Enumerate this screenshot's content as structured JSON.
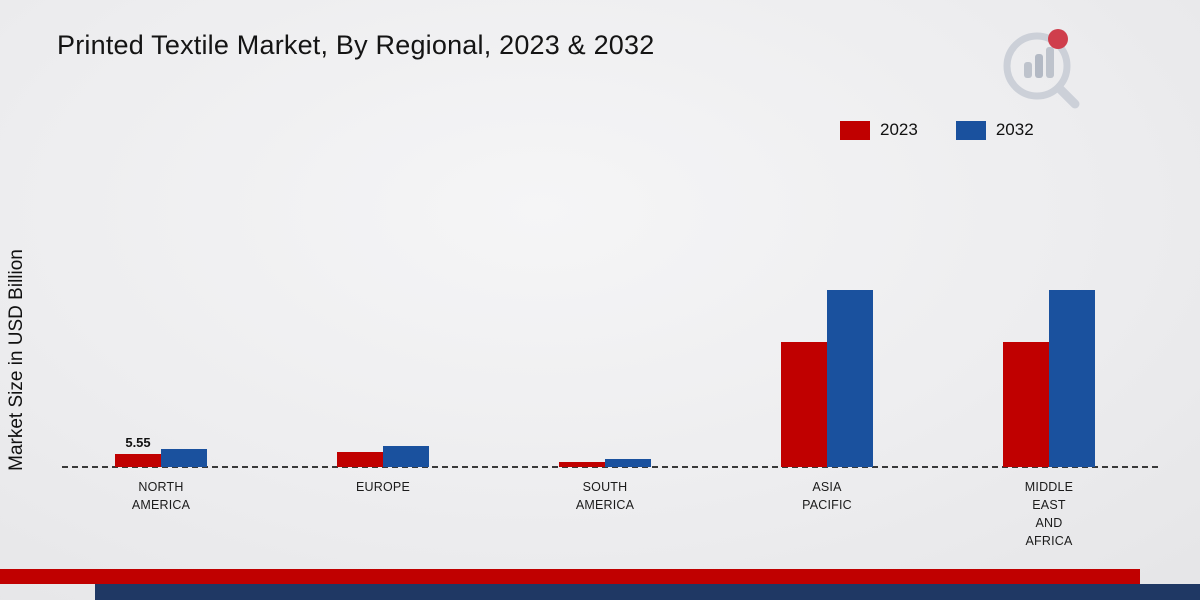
{
  "title": "Printed Textile Market, By Regional, 2023 & 2032",
  "ylabel": "Market Size in USD Billion",
  "legend": [
    {
      "label": "2023",
      "color": "#c00000"
    },
    {
      "label": "2032",
      "color": "#1a519e"
    }
  ],
  "theme": {
    "series_red": "#c00000",
    "series_blue": "#1a519e",
    "footer_red_strip": "#c00000",
    "footer_navy_strip": "#1f3864"
  },
  "logo": {
    "name": "market-research-logo"
  },
  "chart_data": {
    "type": "bar",
    "title": "Printed Textile Market, By Regional, 2023 & 2032",
    "xlabel": "",
    "ylabel": "Market Size in USD Billion",
    "ylim": [
      0,
      150
    ],
    "grid": false,
    "legend_position": "top-right",
    "categories": [
      "NORTH AMERICA",
      "EUROPE",
      "SOUTH AMERICA",
      "ASIA PACIFIC",
      "MIDDLE EAST AND AFRICA"
    ],
    "categories_display": [
      "NORTH\nAMERICA",
      "EUROPE",
      "SOUTH\nAMERICA",
      "ASIA\nPACIFIC",
      "MIDDLE\nEAST\nAND\nAFRICA"
    ],
    "series": [
      {
        "name": "2023",
        "color": "#c00000",
        "values": [
          5.55,
          6.5,
          2.3,
          55,
          55
        ]
      },
      {
        "name": "2032",
        "color": "#1a519e",
        "values": [
          8.1,
          9.5,
          3.4,
          78,
          78
        ]
      }
    ],
    "annotations": [
      {
        "text": "5.55",
        "category": "NORTH AMERICA",
        "series": "2023"
      }
    ]
  }
}
